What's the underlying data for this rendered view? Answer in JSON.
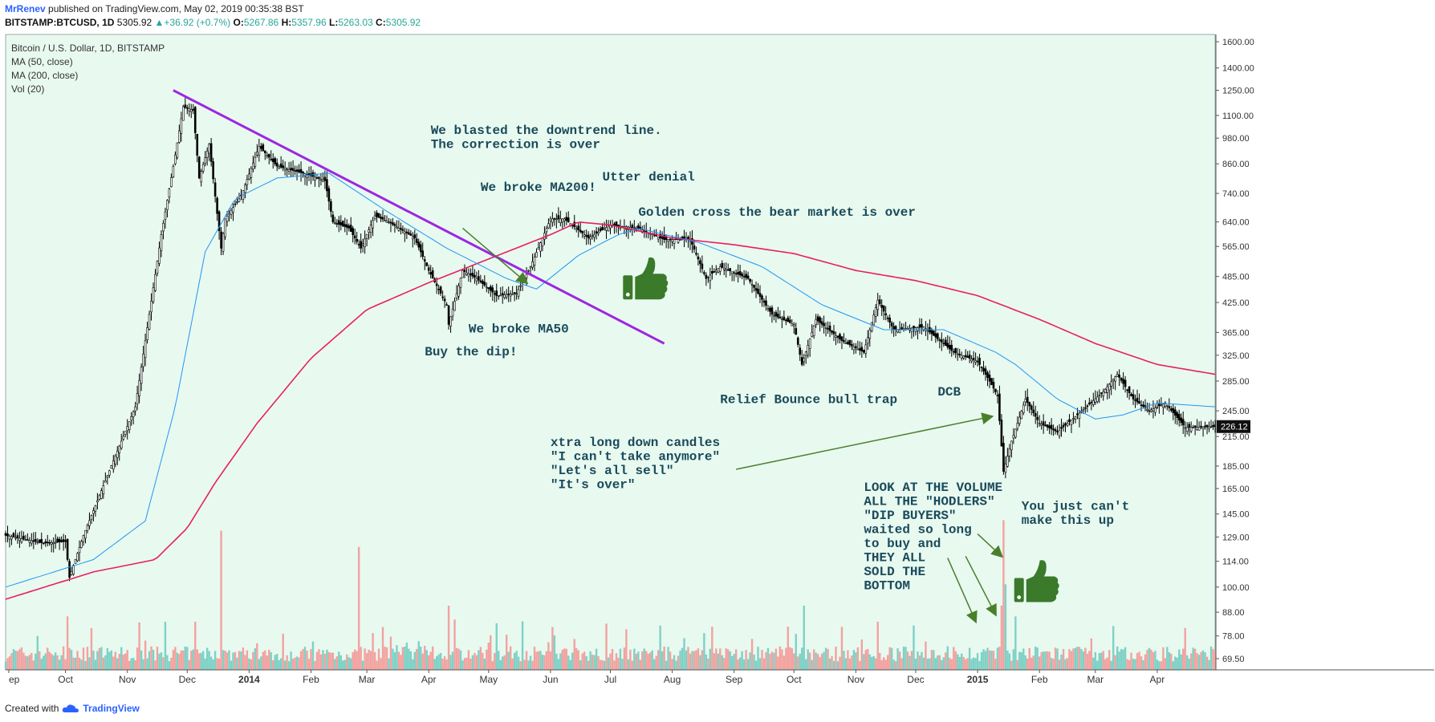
{
  "header": {
    "author": "MrRenev",
    "published": "published on TradingView.com, May 02, 2019 00:35:38 BST",
    "symbol": "BITSTAMP:BTCUSD, 1D",
    "last": "5305.92",
    "change": "+36.92 (+0.7%)",
    "o_label": "O:",
    "o_val": "5267.86",
    "h_label": "H:",
    "h_val": "5357.96",
    "l_label": "L:",
    "l_val": "5263.03",
    "c_label": "C:",
    "c_val": "5305.92"
  },
  "legend": {
    "title": "Bitcoin / U.S. Dollar, 1D, BITSTAMP",
    "ma50": "MA (50, close)",
    "ma200": "MA (200, close)",
    "vol": "Vol (20)"
  },
  "colors": {
    "background": "#e8f9f0",
    "candle": "#000000",
    "ma50": "#2196f3",
    "ma200": "#e91e63",
    "trendline": "#9c27e0",
    "arrow": "#4a7f2a",
    "annotation": "#1a4a5a",
    "thumb": "#3a7a2a",
    "vol_up": "#7fd1c6",
    "vol_down": "#f2a3a0"
  },
  "footer": {
    "created": "Created with",
    "brand": "TradingView"
  },
  "chart_data": {
    "type": "candlestick",
    "price_axis": {
      "scale": "log",
      "ticks": [
        1600,
        1400,
        1250,
        1100,
        980,
        860,
        740,
        640,
        565,
        485,
        425,
        365,
        325,
        285,
        245,
        215,
        185,
        165,
        145,
        129,
        114,
        100,
        88,
        78,
        69.5
      ],
      "tick_labels": [
        "1600.00",
        "1400.00",
        "1250.00",
        "1100.00",
        "980.00",
        "860.00",
        "740.00",
        "640.00",
        "565.00",
        "485.00",
        "425.00",
        "365.00",
        "325.00",
        "285.00",
        "245.00",
        "215.00",
        "185.00",
        "165.00",
        "145.00",
        "129.00",
        "114.00",
        "100.00",
        "88.00",
        "78.00",
        "69.50"
      ],
      "last_price_label": "226.12"
    },
    "time_axis": {
      "labels": [
        "ep",
        "Oct",
        "Nov",
        "Dec",
        "2014",
        "Feb",
        "Mar",
        "Apr",
        "May",
        "Jun",
        "Jul",
        "Aug",
        "Sep",
        "Oct",
        "Nov",
        "Dec",
        "2015",
        "Feb",
        "Mar",
        "Apr"
      ],
      "bold": [
        "2014",
        "2015"
      ],
      "start_date": "2013-09-01",
      "end_date": "2015-04-30"
    },
    "price_path": [
      [
        "2013-09-01",
        130
      ],
      [
        "2013-09-20",
        125
      ],
      [
        "2013-10-01",
        126
      ],
      [
        "2013-10-03",
        105
      ],
      [
        "2013-10-10",
        130
      ],
      [
        "2013-10-25",
        190
      ],
      [
        "2013-11-05",
        250
      ],
      [
        "2013-11-12",
        400
      ],
      [
        "2013-11-18",
        600
      ],
      [
        "2013-11-25",
        900
      ],
      [
        "2013-11-29",
        1150
      ],
      [
        "2013-12-04",
        1130
      ],
      [
        "2013-12-07",
        800
      ],
      [
        "2013-12-12",
        950
      ],
      [
        "2013-12-18",
        560
      ],
      [
        "2013-12-20",
        650
      ],
      [
        "2013-12-28",
        730
      ],
      [
        "2014-01-06",
        940
      ],
      [
        "2014-01-15",
        850
      ],
      [
        "2014-01-28",
        820
      ],
      [
        "2014-02-08",
        790
      ],
      [
        "2014-02-12",
        640
      ],
      [
        "2014-02-20",
        620
      ],
      [
        "2014-02-26",
        560
      ],
      [
        "2014-03-05",
        660
      ],
      [
        "2014-03-12",
        640
      ],
      [
        "2014-03-25",
        590
      ],
      [
        "2014-04-01",
        500
      ],
      [
        "2014-04-10",
        420
      ],
      [
        "2014-04-11",
        380
      ],
      [
        "2014-04-18",
        500
      ],
      [
        "2014-04-25",
        480
      ],
      [
        "2014-05-05",
        440
      ],
      [
        "2014-05-15",
        445
      ],
      [
        "2014-05-22",
        510
      ],
      [
        "2014-06-01",
        650
      ],
      [
        "2014-06-08",
        650
      ],
      [
        "2014-06-20",
        590
      ],
      [
        "2014-07-01",
        630
      ],
      [
        "2014-07-15",
        620
      ],
      [
        "2014-07-28",
        585
      ],
      [
        "2014-08-10",
        585
      ],
      [
        "2014-08-18",
        480
      ],
      [
        "2014-08-25",
        510
      ],
      [
        "2014-09-08",
        480
      ],
      [
        "2014-09-20",
        400
      ],
      [
        "2014-10-01",
        380
      ],
      [
        "2014-10-05",
        310
      ],
      [
        "2014-10-12",
        390
      ],
      [
        "2014-10-25",
        350
      ],
      [
        "2014-11-05",
        330
      ],
      [
        "2014-11-12",
        430
      ],
      [
        "2014-11-20",
        370
      ],
      [
        "2014-12-05",
        375
      ],
      [
        "2014-12-20",
        330
      ],
      [
        "2015-01-01",
        315
      ],
      [
        "2015-01-06",
        290
      ],
      [
        "2015-01-11",
        265
      ],
      [
        "2015-01-14",
        180
      ],
      [
        "2015-01-18",
        210
      ],
      [
        "2015-01-25",
        260
      ],
      [
        "2015-02-01",
        230
      ],
      [
        "2015-02-10",
        220
      ],
      [
        "2015-02-20",
        240
      ],
      [
        "2015-03-05",
        270
      ],
      [
        "2015-03-12",
        295
      ],
      [
        "2015-03-20",
        260
      ],
      [
        "2015-03-28",
        245
      ],
      [
        "2015-04-05",
        255
      ],
      [
        "2015-04-15",
        225
      ],
      [
        "2015-04-30",
        226
      ]
    ],
    "ma50_path": [
      [
        "2013-09-01",
        100
      ],
      [
        "2013-10-15",
        115
      ],
      [
        "2013-11-10",
        140
      ],
      [
        "2013-11-25",
        250
      ],
      [
        "2013-12-10",
        550
      ],
      [
        "2013-12-25",
        720
      ],
      [
        "2014-01-15",
        800
      ],
      [
        "2014-02-10",
        820
      ],
      [
        "2014-03-10",
        680
      ],
      [
        "2014-04-10",
        560
      ],
      [
        "2014-05-10",
        480
      ],
      [
        "2014-05-25",
        455
      ],
      [
        "2014-06-15",
        540
      ],
      [
        "2014-07-05",
        600
      ],
      [
        "2014-07-15",
        620
      ],
      [
        "2014-08-15",
        575
      ],
      [
        "2014-09-15",
        510
      ],
      [
        "2014-10-15",
        420
      ],
      [
        "2014-11-15",
        370
      ],
      [
        "2014-12-15",
        370
      ],
      [
        "2015-01-10",
        330
      ],
      [
        "2015-01-20",
        310
      ],
      [
        "2015-02-10",
        260
      ],
      [
        "2015-03-01",
        235
      ],
      [
        "2015-03-15",
        240
      ],
      [
        "2015-04-01",
        255
      ],
      [
        "2015-04-30",
        250
      ]
    ],
    "ma200_path": [
      [
        "2013-09-01",
        94
      ],
      [
        "2013-10-15",
        108
      ],
      [
        "2013-11-15",
        115
      ],
      [
        "2013-12-01",
        135
      ],
      [
        "2013-12-15",
        170
      ],
      [
        "2014-01-05",
        230
      ],
      [
        "2014-02-01",
        320
      ],
      [
        "2014-03-01",
        410
      ],
      [
        "2014-04-01",
        470
      ],
      [
        "2014-05-01",
        530
      ],
      [
        "2014-06-01",
        600
      ],
      [
        "2014-06-15",
        640
      ],
      [
        "2014-07-01",
        630
      ],
      [
        "2014-08-01",
        590
      ],
      [
        "2014-09-01",
        570
      ],
      [
        "2014-10-01",
        545
      ],
      [
        "2014-11-01",
        500
      ],
      [
        "2014-12-01",
        475
      ],
      [
        "2015-01-01",
        440
      ],
      [
        "2015-02-01",
        390
      ],
      [
        "2015-03-01",
        345
      ],
      [
        "2015-04-01",
        310
      ],
      [
        "2015-04-30",
        295
      ]
    ],
    "volume_axis_max": 150,
    "volume_spikes": [
      [
        "2013-10-02",
        50,
        "down"
      ],
      [
        "2013-11-20",
        45,
        "up"
      ],
      [
        "2013-12-05",
        45,
        "down"
      ],
      [
        "2013-12-18",
        130,
        "down"
      ],
      [
        "2014-02-25",
        115,
        "down"
      ],
      [
        "2014-04-11",
        60,
        "down"
      ],
      [
        "2014-06-02",
        40,
        "down"
      ],
      [
        "2014-10-06",
        60,
        "up"
      ],
      [
        "2014-11-12",
        45,
        "down"
      ],
      [
        "2015-01-13",
        60,
        "down"
      ],
      [
        "2015-01-14",
        140,
        "down"
      ],
      [
        "2015-01-15",
        80,
        "up"
      ],
      [
        "2015-01-20",
        50,
        "up"
      ]
    ],
    "trendline": {
      "from": [
        "2013-11-24",
        1250
      ],
      "to": [
        "2014-07-28",
        345
      ]
    },
    "annotations": [
      {
        "lines": [
          "We blasted the downtrend line.",
          "The correction is over"
        ],
        "anchor": "2014-04-02",
        "price": 1000
      },
      {
        "lines": [
          "We broke MA200!"
        ],
        "anchor": "2014-04-27",
        "price": 750
      },
      {
        "lines": [
          "Utter denial"
        ],
        "anchor": "2014-06-27",
        "price": 790
      },
      {
        "lines": [
          "Golden cross the bear market is over"
        ],
        "anchor": "2014-07-15",
        "price": 660
      },
      {
        "lines": [
          "We broke MA50"
        ],
        "anchor": "2014-04-21",
        "price": 365
      },
      {
        "lines": [
          "Buy the dip!"
        ],
        "anchor": "2014-03-30",
        "price": 325
      },
      {
        "lines": [
          "Relief Bounce bull trap"
        ],
        "anchor": "2014-08-25",
        "price": 255
      },
      {
        "lines": [
          "DCB"
        ],
        "anchor": "2014-12-12",
        "price": 265
      },
      {
        "lines": [
          "xtra long down candles",
          "\"I can't take anymore\"",
          "\"Let's all sell\"",
          "\"It's over\""
        ],
        "anchor": "2014-06-01",
        "price": 205
      },
      {
        "lines": [
          "LOOK AT THE VOLUME",
          "ALL THE \"HODLERS\"",
          "\"DIP BUYERS\"",
          "waited so long",
          "to buy and",
          "THEY ALL",
          "SOLD THE",
          "BOTTOM"
        ],
        "anchor": "2014-11-05",
        "price": 163
      },
      {
        "lines": [
          "You just can't",
          "make this up"
        ],
        "anchor": "2015-01-23",
        "price": 148
      }
    ]
  }
}
